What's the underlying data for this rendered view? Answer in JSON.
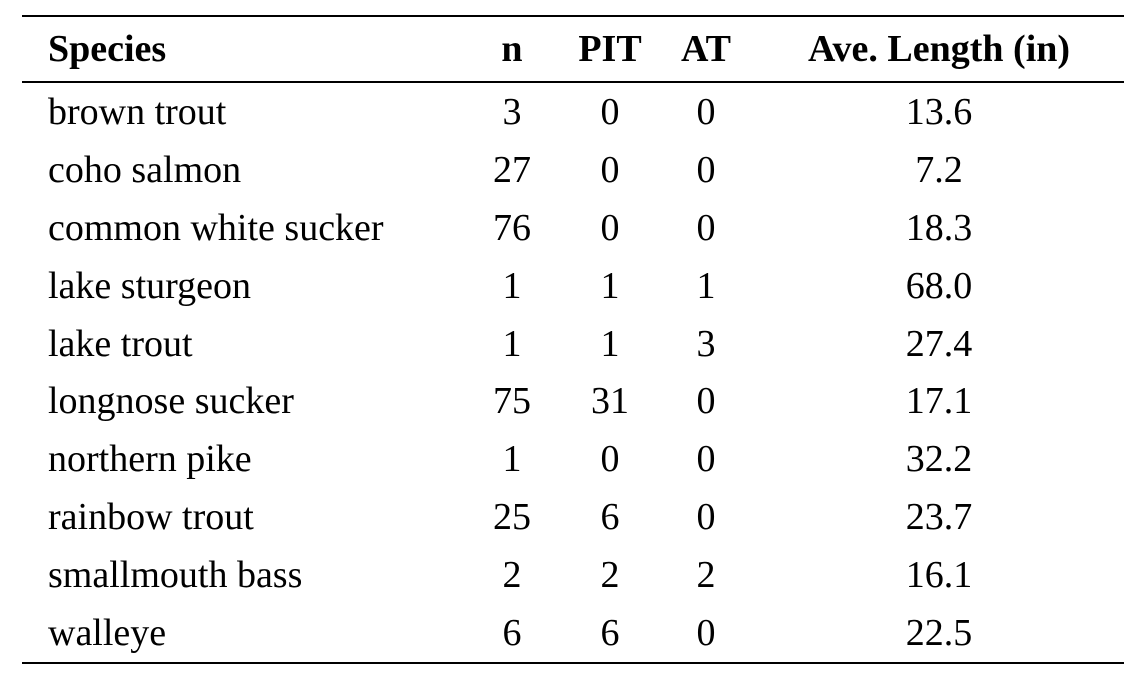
{
  "table": {
    "headers": {
      "species": "Species",
      "n": "n",
      "pit": "PIT",
      "at": "AT",
      "length": "Ave. Length (in)"
    },
    "rows": [
      {
        "species": "brown trout",
        "n": "3",
        "pit": "0",
        "at": "0",
        "length": "13.6"
      },
      {
        "species": "coho salmon",
        "n": "27",
        "pit": "0",
        "at": "0",
        "length": "7.2"
      },
      {
        "species": "common white sucker",
        "n": "76",
        "pit": "0",
        "at": "0",
        "length": "18.3"
      },
      {
        "species": "lake sturgeon",
        "n": "1",
        "pit": "1",
        "at": "1",
        "length": "68.0"
      },
      {
        "species": "lake trout",
        "n": "1",
        "pit": "1",
        "at": "3",
        "length": "27.4"
      },
      {
        "species": "longnose sucker",
        "n": "75",
        "pit": "31",
        "at": "0",
        "length": "17.1"
      },
      {
        "species": "northern pike",
        "n": "1",
        "pit": "0",
        "at": "0",
        "length": "32.2"
      },
      {
        "species": "rainbow trout",
        "n": "25",
        "pit": "6",
        "at": "0",
        "length": "23.7"
      },
      {
        "species": "smallmouth bass",
        "n": "2",
        "pit": "2",
        "at": "2",
        "length": "16.1"
      },
      {
        "species": "walleye",
        "n": "6",
        "pit": "6",
        "at": "0",
        "length": "22.5"
      }
    ]
  }
}
